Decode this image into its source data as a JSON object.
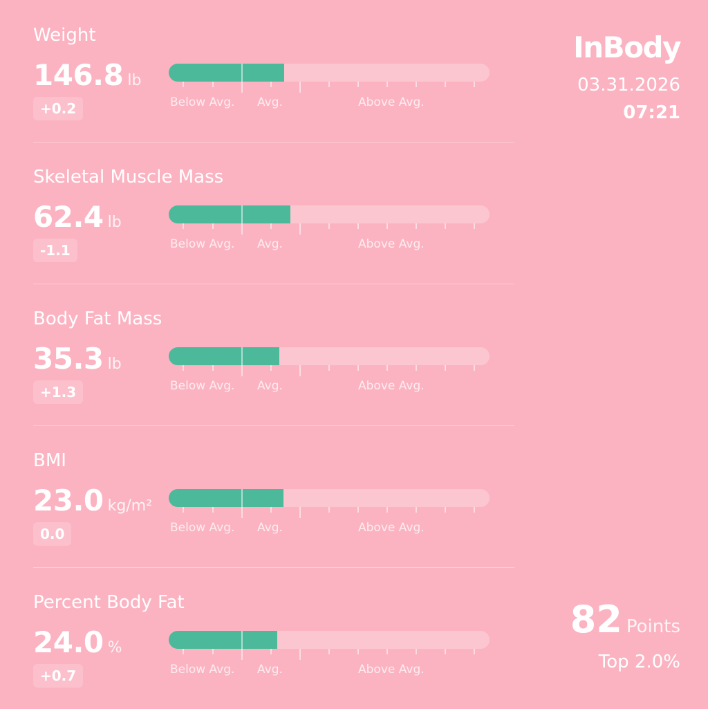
{
  "header": {
    "brand": "InBody",
    "date": "03.31.2026",
    "time": "07:21"
  },
  "score": {
    "value": "82",
    "unit": "Points",
    "rank": "Top 2.0%"
  },
  "scale_labels": {
    "below": "Below Avg.",
    "avg": "Avg.",
    "above": "Above Avg."
  },
  "colors": {
    "background": "#FBB3C1",
    "bar_track": "#FCC6D0",
    "bar_fill": "#4CB99A",
    "text": "#FFFFFF"
  },
  "metrics": [
    {
      "label": "Weight",
      "value": "146.8",
      "unit": "lb",
      "change": "+0.2",
      "fill_fraction": 0.36
    },
    {
      "label": "Skeletal Muscle Mass",
      "value": "62.4",
      "unit": "lb",
      "change": "-1.1",
      "fill_fraction": 0.38
    },
    {
      "label": "Body Fat Mass",
      "value": "35.3",
      "unit": "lb",
      "change": "+1.3",
      "fill_fraction": 0.345
    },
    {
      "label": "BMI",
      "value": "23.0",
      "unit": "kg/m²",
      "change": "0.0",
      "fill_fraction": 0.357
    },
    {
      "label": "Percent Body Fat",
      "value": "24.0",
      "unit": "%",
      "change": "+0.7",
      "fill_fraction": 0.338
    }
  ]
}
